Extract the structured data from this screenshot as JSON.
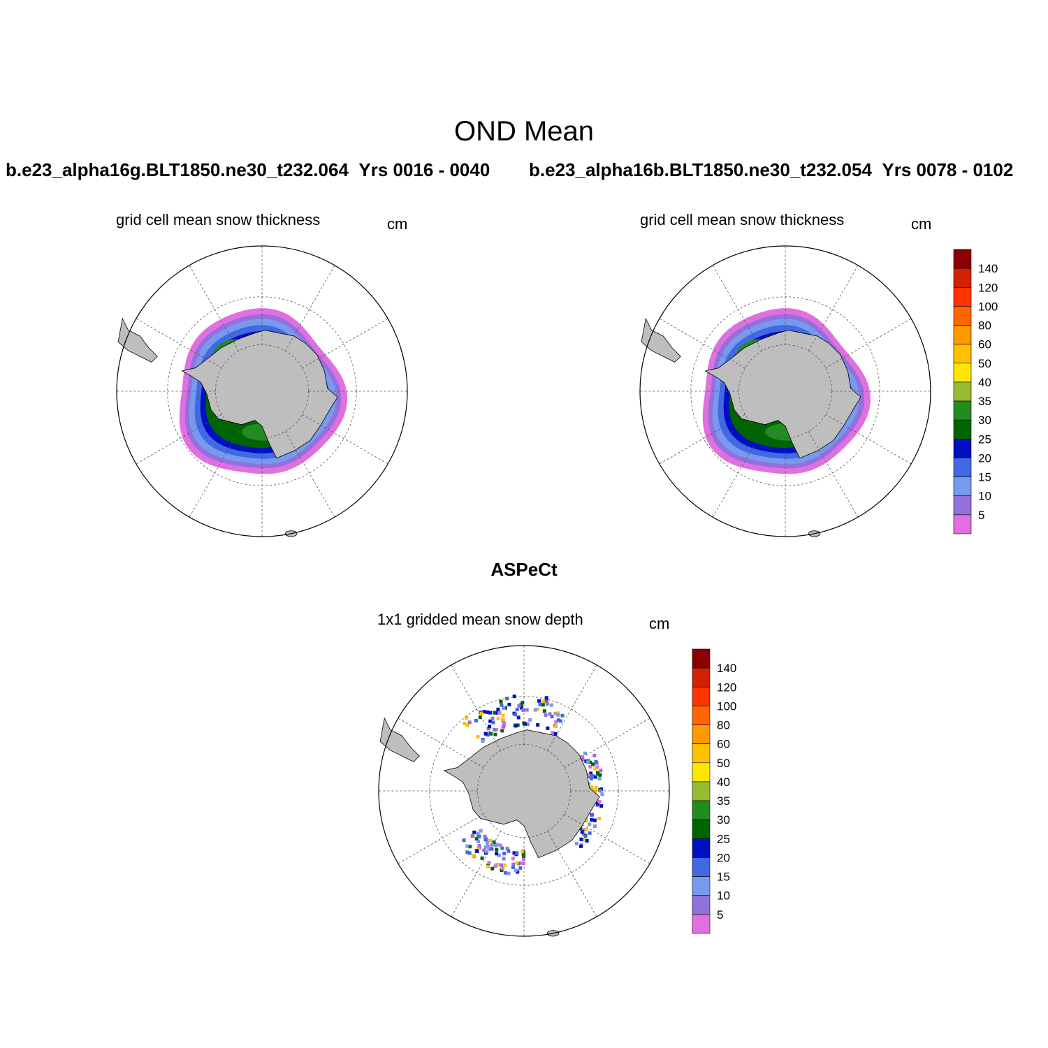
{
  "title": "OND Mean",
  "cases": [
    {
      "name": "b.e23_alpha16g.BLT1850.ne30_t232.064",
      "years": "Yrs 0016 - 0040"
    },
    {
      "name": "b.e23_alpha16b.BLT1850.ne30_t232.054",
      "years": "Yrs 0078 - 0102"
    }
  ],
  "panels": [
    {
      "subtitle": "grid cell mean snow thickness",
      "units": "cm"
    },
    {
      "subtitle": "grid cell mean snow thickness",
      "units": "cm"
    },
    {
      "subtitle": "1x1 gridded mean snow depth",
      "units": "cm"
    }
  ],
  "observation_title": "ASPeCt",
  "colorbar": {
    "labels": [
      "140",
      "120",
      "100",
      "80",
      "60",
      "50",
      "40",
      "35",
      "30",
      "25",
      "20",
      "15",
      "10",
      "5"
    ],
    "colors": [
      "#8b0000",
      "#d42200",
      "#ff3300",
      "#ff6600",
      "#ff9900",
      "#ffc000",
      "#ffe600",
      "#99bb33",
      "#228b22",
      "#006400",
      "#0010c0",
      "#4169e1",
      "#7799ee",
      "#9370db",
      "#e070e0"
    ]
  },
  "map_colors": {
    "land": "#bebebe",
    "ocean": "#ffffff"
  }
}
